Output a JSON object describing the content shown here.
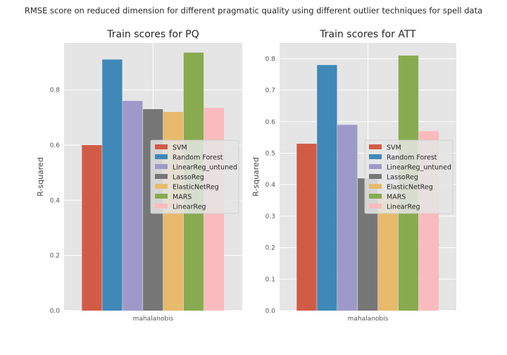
{
  "figure_title": "RMSE score on reduced dimension for different pragmatic quality using different outlier techniques for spell data",
  "chart_data": [
    {
      "type": "bar",
      "title": "Train scores for PQ",
      "xlabel": "",
      "ylabel": "R-squared",
      "categories": [
        "mahalanobis"
      ],
      "ylim": [
        0,
        0.97
      ],
      "yticks": [
        0.0,
        0.2,
        0.4,
        0.6,
        0.8
      ],
      "grid": true,
      "legend_position": "center-right",
      "series": [
        {
          "name": "SVM",
          "values": [
            0.6
          ],
          "color": "#d15b47"
        },
        {
          "name": "Random Forest",
          "values": [
            0.91
          ],
          "color": "#3f88b7"
        },
        {
          "name": "LinearReg_untuned",
          "values": [
            0.76
          ],
          "color": "#9e99c8"
        },
        {
          "name": "LassoReg",
          "values": [
            0.73
          ],
          "color": "#777777"
        },
        {
          "name": "ElasticNetReg",
          "values": [
            0.72
          ],
          "color": "#e7ba6c"
        },
        {
          "name": "MARS",
          "values": [
            0.935
          ],
          "color": "#88ab50"
        },
        {
          "name": "LinearReg",
          "values": [
            0.735
          ],
          "color": "#f9bbbe"
        }
      ]
    },
    {
      "type": "bar",
      "title": "Train scores for ATT",
      "xlabel": "",
      "ylabel": "R-squared",
      "categories": [
        "mahalanobis"
      ],
      "ylim": [
        0,
        0.85
      ],
      "yticks": [
        0.0,
        0.1,
        0.2,
        0.3,
        0.4,
        0.5,
        0.6,
        0.7,
        0.8
      ],
      "grid": true,
      "legend_position": "center-right",
      "series": [
        {
          "name": "SVM",
          "values": [
            0.53
          ],
          "color": "#d15b47"
        },
        {
          "name": "Random Forest",
          "values": [
            0.78
          ],
          "color": "#3f88b7"
        },
        {
          "name": "LinearReg_untuned",
          "values": [
            0.59
          ],
          "color": "#9e99c8"
        },
        {
          "name": "LassoReg",
          "values": [
            0.42
          ],
          "color": "#777777"
        },
        {
          "name": "ElasticNetReg",
          "values": [
            0.37
          ],
          "color": "#e7ba6c"
        },
        {
          "name": "MARS",
          "values": [
            0.81
          ],
          "color": "#88ab50"
        },
        {
          "name": "LinearReg",
          "values": [
            0.57
          ],
          "color": "#f9bbbe"
        }
      ]
    }
  ]
}
